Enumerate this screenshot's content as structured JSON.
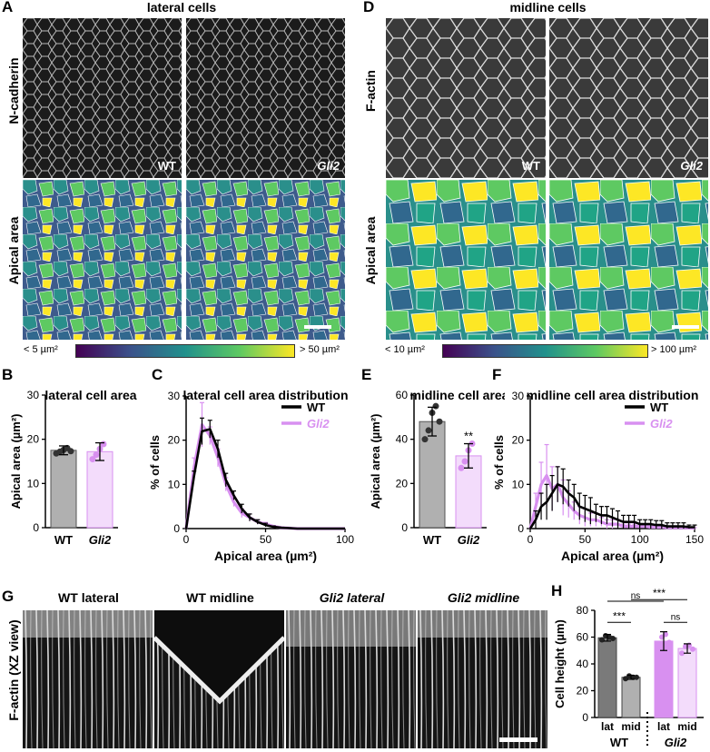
{
  "colors": {
    "wt": "#000000",
    "gli2": "#d890f0",
    "wt_bar": "#b0b0b0",
    "gli2_bar": "#f3dcfb",
    "wt_bar_dark": "#7a7a7a",
    "gli2_bar_mid": "#d890f0"
  },
  "panelA": {
    "letter": "A",
    "title": "lateral cells",
    "row1": "N-cadherin",
    "row2": "Apical area",
    "wt": "WT",
    "gli2": "Gli2",
    "cb_low": "< 5 µm²",
    "cb_high": "> 50 µm²"
  },
  "panelD": {
    "letter": "D",
    "title": "midline cells",
    "row1": "F-actin",
    "row2": "Apical area",
    "wt": "WT",
    "gli2": "Gli2",
    "cb_low": "< 10 µm²",
    "cb_high": "> 100 µm²"
  },
  "panelG": {
    "letter": "G",
    "ylabel": "F-actin (XZ view)",
    "labels": [
      "WT lateral",
      "WT midline",
      "Gli2 lateral",
      "Gli2 midline"
    ]
  },
  "chart_data": [
    {
      "id": "B",
      "type": "bar",
      "letter": "B",
      "title": "lateral cell area",
      "ylabel": "Apical area (µm²)",
      "categories": [
        "WT",
        "Gli2"
      ],
      "values": [
        17.5,
        17.2
      ],
      "errors": [
        1.0,
        2.0
      ],
      "points": [
        [
          16.8,
          17.2,
          17.6,
          18.0,
          17.3
        ],
        [
          15.5,
          16.5,
          17.8,
          18.9
        ]
      ],
      "ylim": [
        0,
        30
      ],
      "yticks": [
        0,
        10,
        20,
        30
      ],
      "significance": ""
    },
    {
      "id": "C",
      "type": "line",
      "letter": "C",
      "title": "lateral cell area distribution",
      "xlabel": "Apical area (µm²)",
      "ylabel": "% of cells",
      "xlim": [
        0,
        100
      ],
      "ylim": [
        0,
        30
      ],
      "xticks": [
        0,
        50,
        100
      ],
      "yticks": [
        0,
        10,
        20,
        30
      ],
      "series": [
        {
          "name": "WT",
          "x": [
            0,
            5,
            10,
            15,
            20,
            25,
            30,
            35,
            40,
            45,
            50,
            55,
            60,
            65,
            70,
            75,
            80,
            85,
            90,
            95,
            100
          ],
          "y": [
            0,
            12,
            22,
            22.5,
            18,
            11,
            7.5,
            4.5,
            2.5,
            1.5,
            0.8,
            0.4,
            0.2,
            0.1,
            0,
            0,
            0,
            0,
            0,
            0,
            0
          ],
          "err": [
            0,
            1,
            3,
            2,
            2,
            1.5,
            1,
            1,
            0.8,
            0.5,
            0.4,
            0.2,
            0.1,
            0.1,
            0,
            0,
            0,
            0,
            0,
            0,
            0
          ]
        },
        {
          "name": "Gli2",
          "x": [
            0,
            5,
            10,
            15,
            20,
            25,
            30,
            35,
            40,
            45,
            50,
            55,
            60,
            65,
            70,
            75,
            80,
            85,
            90,
            95,
            100
          ],
          "y": [
            0,
            14,
            23.5,
            21,
            16,
            10,
            6,
            3.5,
            2.5,
            1.5,
            1,
            0.5,
            0.2,
            0.1,
            0,
            0,
            0,
            0,
            0,
            0,
            0
          ],
          "err": [
            0,
            2,
            5,
            2,
            2,
            1.5,
            1,
            1,
            0.8,
            0.5,
            0.4,
            0.2,
            0.1,
            0.1,
            0,
            0,
            0,
            0,
            0,
            0,
            0
          ]
        }
      ]
    },
    {
      "id": "E",
      "type": "bar",
      "letter": "E",
      "title": "midline cell area",
      "ylabel": "Apical area (µm²)",
      "categories": [
        "WT",
        "Gli2"
      ],
      "values": [
        48,
        32.5
      ],
      "errors": [
        6.5,
        5.5
      ],
      "points": [
        [
          40,
          44,
          52,
          55,
          48
        ],
        [
          27,
          30,
          35,
          38
        ]
      ],
      "ylim": [
        0,
        60
      ],
      "yticks": [
        0,
        20,
        40,
        60
      ],
      "significance": "**"
    },
    {
      "id": "F",
      "type": "line",
      "letter": "F",
      "title": "midline cell area distribution",
      "xlabel": "Apical area (µm²)",
      "ylabel": "% of cells",
      "xlim": [
        0,
        150
      ],
      "ylim": [
        0,
        30
      ],
      "xticks": [
        0,
        50,
        100,
        150
      ],
      "yticks": [
        0,
        10,
        20,
        30
      ],
      "series": [
        {
          "name": "WT",
          "x": [
            0,
            5,
            10,
            15,
            20,
            25,
            30,
            35,
            40,
            45,
            50,
            55,
            60,
            65,
            70,
            75,
            80,
            85,
            90,
            95,
            100,
            105,
            110,
            115,
            120,
            125,
            130,
            135,
            140,
            145,
            150
          ],
          "y": [
            0,
            2,
            5,
            6,
            8,
            10,
            9.5,
            8,
            7,
            5,
            4.5,
            4,
            3.5,
            3,
            3,
            2.5,
            2,
            1.5,
            1.5,
            1.5,
            1,
            1,
            1,
            0.8,
            0.8,
            0.5,
            0.5,
            0.5,
            0.5,
            0.3,
            0.3
          ],
          "err": [
            0,
            2,
            3,
            4,
            4,
            4,
            4,
            3,
            3,
            3,
            3,
            3,
            2,
            2,
            2,
            2,
            2,
            1.5,
            1.5,
            1.5,
            1,
            1,
            1,
            1,
            1,
            0.8,
            0.8,
            0.8,
            0.8,
            0.5,
            0.5
          ]
        },
        {
          "name": "Gli2",
          "x": [
            0,
            5,
            10,
            15,
            20,
            25,
            30,
            35,
            40,
            45,
            50,
            55,
            60,
            65,
            70,
            75,
            80,
            85,
            90,
            95,
            100,
            105,
            110,
            115,
            120,
            125,
            130,
            135,
            140,
            145,
            150
          ],
          "y": [
            0,
            5,
            10,
            12,
            9,
            10,
            7,
            5.5,
            4,
            3,
            2.5,
            2,
            2,
            1.5,
            1,
            1,
            1,
            0.5,
            0.5,
            0.5,
            0.5,
            0.5,
            0.3,
            0.3,
            0.3,
            0.2,
            0.2,
            0.2,
            0.2,
            0.1,
            0.1
          ],
          "err": [
            0,
            3,
            5,
            7,
            5,
            4,
            4,
            3,
            2,
            2,
            2,
            1.5,
            1.5,
            1,
            1,
            1,
            1,
            0.5,
            0.5,
            0.5,
            0.5,
            0.5,
            0.3,
            0.3,
            0.3,
            0.2,
            0.2,
            0.2,
            0.2,
            0.1,
            0.1
          ]
        }
      ]
    },
    {
      "id": "H",
      "type": "bar",
      "letter": "H",
      "ylabel": "Cell height (µm)",
      "categories": [
        "lat",
        "mid",
        "lat",
        "mid"
      ],
      "groups": [
        "WT",
        "Gli2"
      ],
      "values": [
        59.5,
        30,
        57,
        51.5
      ],
      "errors": [
        2.5,
        1.5,
        7,
        3.5
      ],
      "points": [
        [
          58,
          61,
          60,
          59
        ],
        [
          29,
          31,
          30,
          30
        ],
        [
          51,
          60,
          62,
          56
        ],
        [
          48,
          53,
          54,
          51
        ]
      ],
      "ylim": [
        0,
        80
      ],
      "yticks": [
        0,
        20,
        40,
        60,
        80
      ],
      "significance": [
        {
          "between": [
            0,
            1
          ],
          "label": "***"
        },
        {
          "between": [
            0,
            2
          ],
          "label": "ns"
        },
        {
          "between": [
            2,
            3
          ],
          "label": "ns"
        },
        {
          "between": [
            1,
            3
          ],
          "label": "***"
        }
      ]
    }
  ]
}
